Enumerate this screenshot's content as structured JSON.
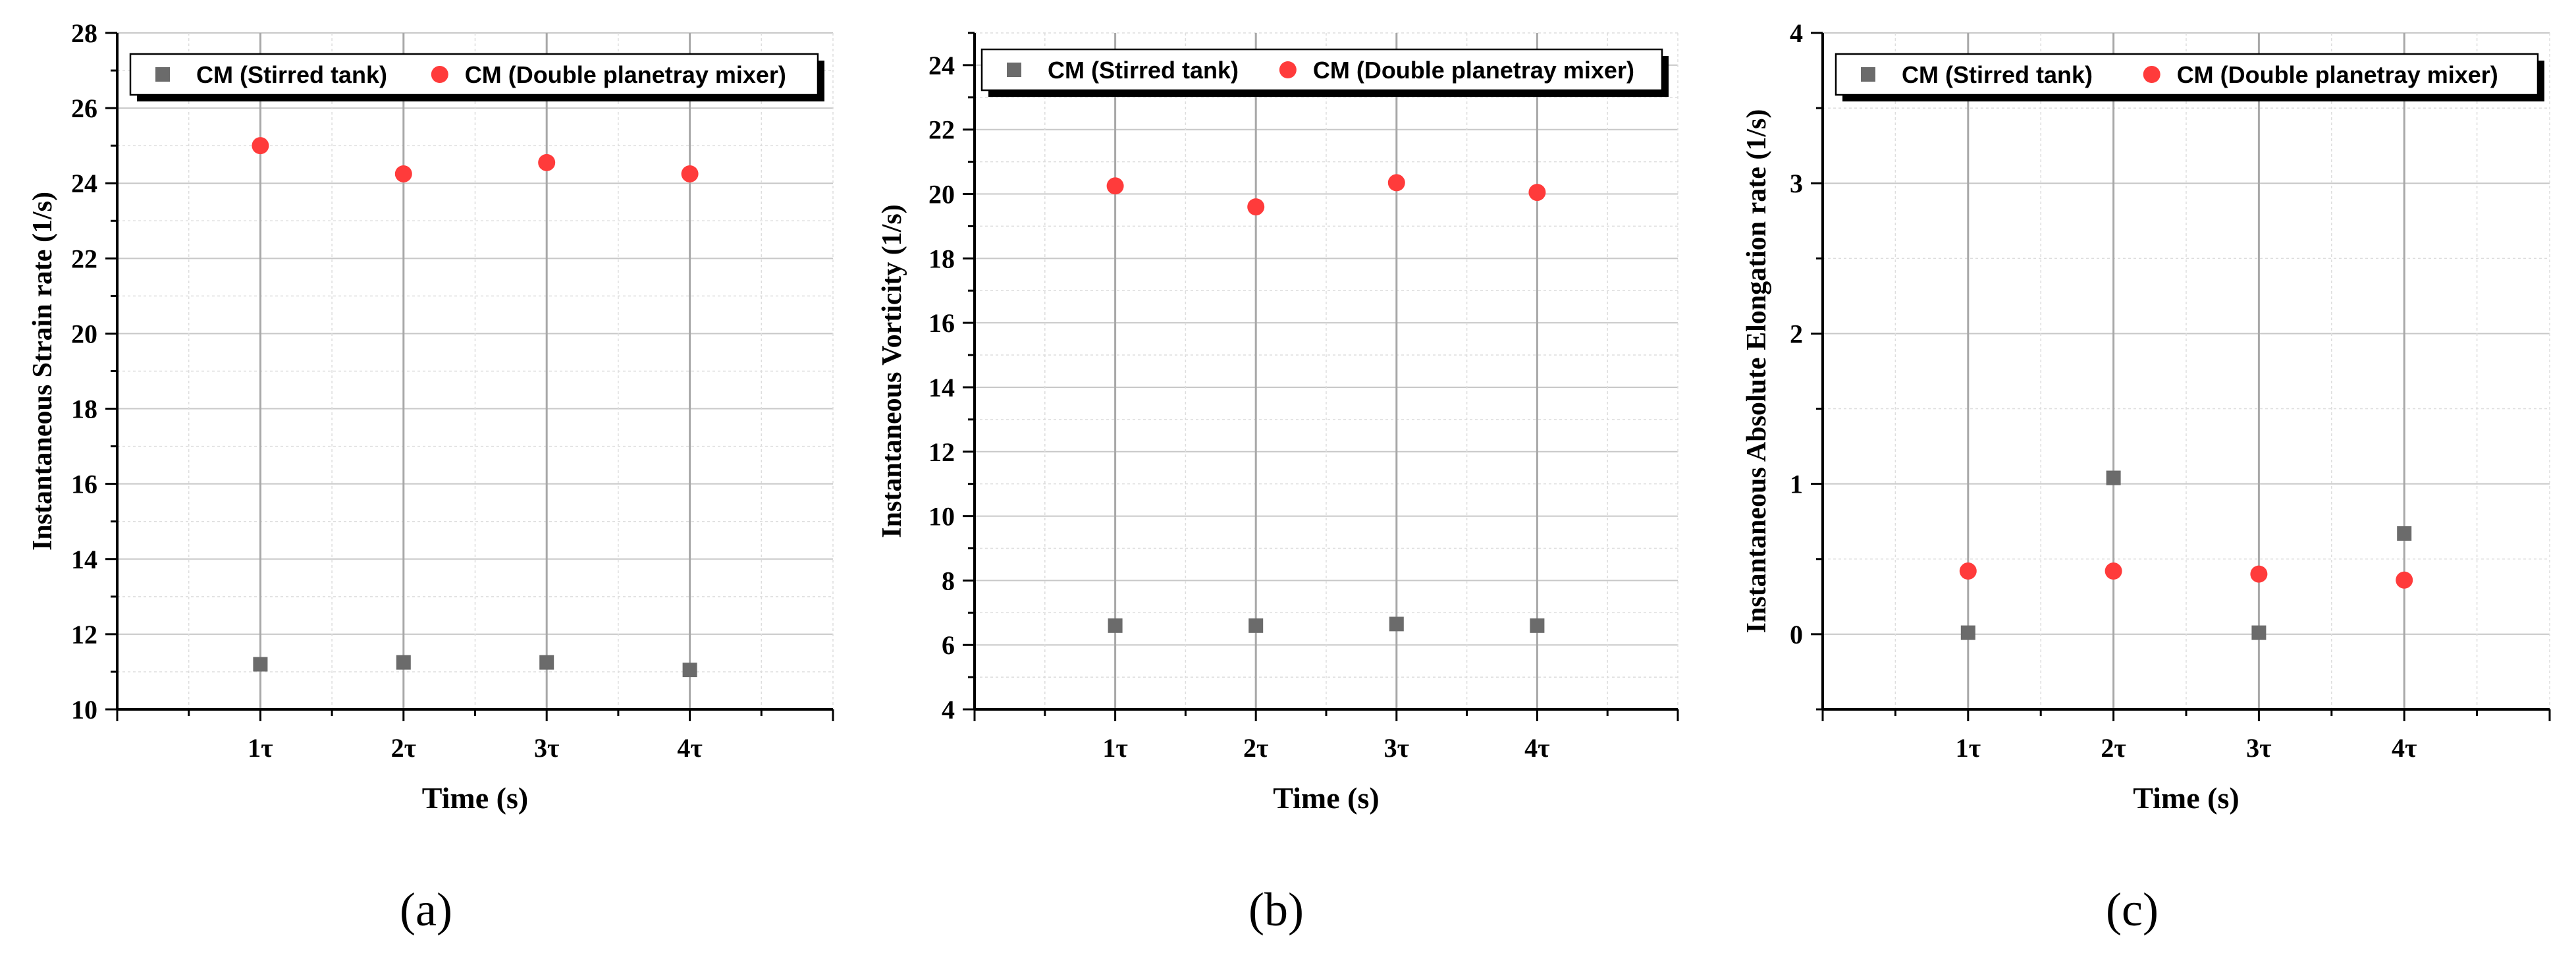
{
  "figure": {
    "panel_labels": [
      "(a)",
      "(b)",
      "(c)"
    ]
  },
  "chart_data": [
    {
      "type": "scatter",
      "panel": "(a)",
      "xlabel": "Time (s)",
      "ylabel": "Instantaneous Strain rate (1/s)",
      "x_ticks": [
        "1τ",
        "2τ",
        "3τ",
        "4τ"
      ],
      "xlim": [
        0,
        5
      ],
      "ylim": [
        10,
        28
      ],
      "y_major_ticks": [
        10,
        12,
        14,
        16,
        18,
        20,
        22,
        24,
        26,
        28
      ],
      "grid": true,
      "legend_position": "top",
      "series": [
        {
          "name": "CM (Stirred tank)",
          "marker": "square",
          "color": "#6b6b6b",
          "x": [
            1,
            2,
            3,
            4
          ],
          "y": [
            11.2,
            11.25,
            11.25,
            11.05
          ]
        },
        {
          "name": "CM (Double planetray mixer)",
          "marker": "circle",
          "color": "#ff3b3b",
          "x": [
            1,
            2,
            3,
            4
          ],
          "y": [
            25.0,
            24.25,
            24.55,
            24.25
          ]
        }
      ]
    },
    {
      "type": "scatter",
      "panel": "(b)",
      "xlabel": "Time (s)",
      "ylabel": "Instantaneous Vorticity (1/s)",
      "x_ticks": [
        "1τ",
        "2τ",
        "3τ",
        "4τ"
      ],
      "xlim": [
        0,
        5
      ],
      "ylim": [
        4,
        25
      ],
      "y_major_ticks": [
        4,
        6,
        8,
        10,
        12,
        14,
        16,
        18,
        20,
        22,
        24
      ],
      "grid": true,
      "legend_position": "top",
      "series": [
        {
          "name": "CM (Stirred tank)",
          "marker": "square",
          "color": "#6b6b6b",
          "x": [
            1,
            2,
            3,
            4
          ],
          "y": [
            6.6,
            6.6,
            6.65,
            6.6
          ]
        },
        {
          "name": "CM (Double planetray mixer)",
          "marker": "circle",
          "color": "#ff3b3b",
          "x": [
            1,
            2,
            3,
            4
          ],
          "y": [
            20.25,
            19.6,
            20.35,
            20.05
          ]
        }
      ]
    },
    {
      "type": "scatter",
      "panel": "(c)",
      "xlabel": "Time (s)",
      "ylabel": "Instantaneous Absolute Elongation rate (1/s)",
      "x_ticks": [
        "1τ",
        "2τ",
        "3τ",
        "4τ"
      ],
      "xlim": [
        0,
        5
      ],
      "ylim": [
        -0.5,
        4
      ],
      "y_major_ticks": [
        0,
        1,
        2,
        3,
        4
      ],
      "grid": true,
      "legend_position": "top",
      "series": [
        {
          "name": "CM (Stirred tank)",
          "marker": "square",
          "color": "#6b6b6b",
          "x": [
            1,
            2,
            3,
            4
          ],
          "y": [
            0.01,
            1.04,
            0.01,
            0.67
          ]
        },
        {
          "name": "CM (Double planetray mixer)",
          "marker": "circle",
          "color": "#ff3b3b",
          "x": [
            1,
            2,
            3,
            4
          ],
          "y": [
            0.42,
            0.42,
            0.4,
            0.36
          ]
        }
      ]
    }
  ]
}
